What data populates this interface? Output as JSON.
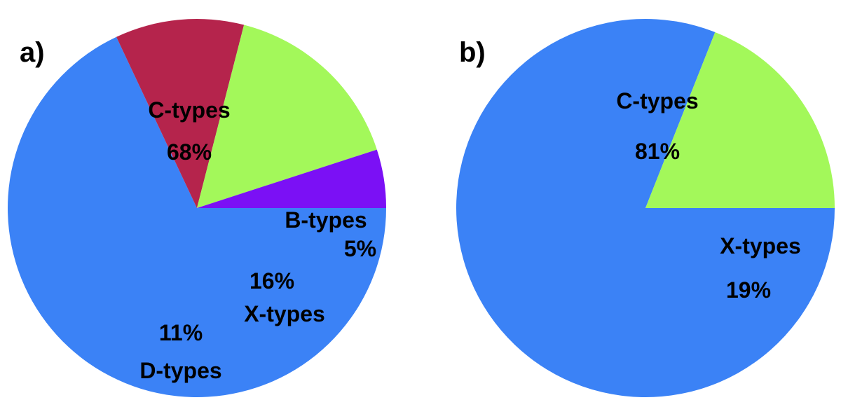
{
  "chart_data": [
    {
      "type": "pie",
      "panel_label": "a)",
      "slices": [
        {
          "category": "C-types",
          "percent_label": "68%",
          "value": 68,
          "color": "#3b82f6"
        },
        {
          "category": "B-types",
          "percent_label": "5%",
          "value": 5,
          "color": "#7b10f5"
        },
        {
          "category": "X-types",
          "percent_label": "16%",
          "value": 16,
          "color": "#a3f85a"
        },
        {
          "category": "D-types",
          "percent_label": "11%",
          "value": 11,
          "color": "#b5244c"
        }
      ]
    },
    {
      "type": "pie",
      "panel_label": "b)",
      "slices": [
        {
          "category": "C-types",
          "percent_label": "81%",
          "value": 81,
          "color": "#3b82f6"
        },
        {
          "category": "X-types",
          "percent_label": "19%",
          "value": 19,
          "color": "#a3f85a"
        }
      ]
    }
  ]
}
